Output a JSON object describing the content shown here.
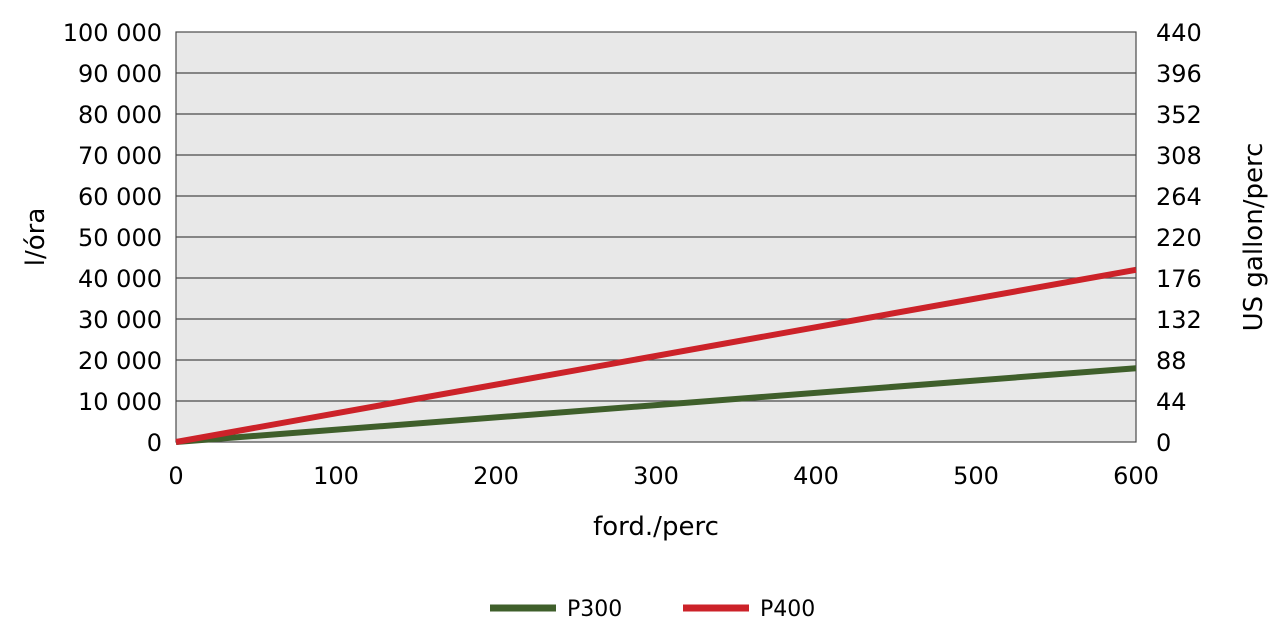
{
  "chart_data": {
    "type": "line",
    "xlabel": "ford./perc",
    "ylabel": "l/óra",
    "y2label": "US gallon/perc",
    "xlim": [
      0,
      600
    ],
    "ylim": [
      0,
      100000
    ],
    "y2lim": [
      0,
      440
    ],
    "x_ticks": [
      "0",
      "100",
      "200",
      "300",
      "400",
      "500",
      "600"
    ],
    "y_ticks": [
      "0",
      "10 000",
      "20 000",
      "30 000",
      "40 000",
      "50 000",
      "60 000",
      "70 000",
      "80 000",
      "90 000",
      "100 000"
    ],
    "y2_ticks": [
      "0",
      "44",
      "88",
      "132",
      "176",
      "220",
      "264",
      "308",
      "352",
      "396",
      "440"
    ],
    "grid": true,
    "legend_position": "bottom",
    "series": [
      {
        "name": "P300",
        "color": "#3f5f2b",
        "x": [
          0,
          600
        ],
        "y": [
          0,
          18000
        ]
      },
      {
        "name": "P400",
        "color": "#cc2229",
        "x": [
          0,
          600
        ],
        "y": [
          0,
          42000
        ]
      }
    ]
  }
}
